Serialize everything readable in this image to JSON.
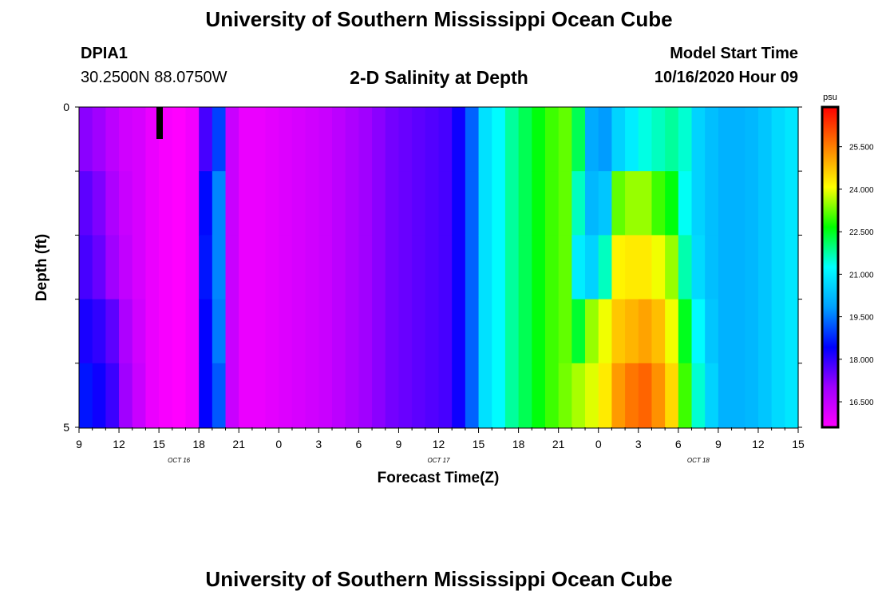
{
  "header": {
    "title": "University of Southern Mississippi Ocean Cube",
    "station_id": "DPIA1",
    "station_coords": "30.2500N 88.0750W",
    "plot_title": "2-D Salinity at Depth",
    "model_label": "Model Start Time",
    "model_time": "10/16/2020 Hour 09"
  },
  "footer": {
    "title": "University of Southern Mississippi Ocean Cube"
  },
  "chart_data": {
    "type": "heatmap",
    "title": "2-D Salinity at Depth",
    "xlabel": "Forecast Time(Z)",
    "ylabel": "Depth (ft)",
    "units": "psu",
    "x_range": [
      0,
      54
    ],
    "y_range": [
      0,
      5
    ],
    "x_ticks": [
      {
        "pos": 0,
        "label": "9"
      },
      {
        "pos": 3,
        "label": "12"
      },
      {
        "pos": 6,
        "label": "15"
      },
      {
        "pos": 9,
        "label": "18"
      },
      {
        "pos": 12,
        "label": "21"
      },
      {
        "pos": 15,
        "label": "0"
      },
      {
        "pos": 18,
        "label": "3"
      },
      {
        "pos": 21,
        "label": "6"
      },
      {
        "pos": 24,
        "label": "9"
      },
      {
        "pos": 27,
        "label": "12"
      },
      {
        "pos": 30,
        "label": "15"
      },
      {
        "pos": 33,
        "label": "18"
      },
      {
        "pos": 36,
        "label": "21"
      },
      {
        "pos": 39,
        "label": "0"
      },
      {
        "pos": 42,
        "label": "3"
      },
      {
        "pos": 45,
        "label": "6"
      },
      {
        "pos": 48,
        "label": "9"
      },
      {
        "pos": 51,
        "label": "12"
      },
      {
        "pos": 54,
        "label": "15"
      }
    ],
    "date_labels": [
      {
        "pos": 7.5,
        "label": "OCT 16"
      },
      {
        "pos": 27,
        "label": "OCT 17"
      },
      {
        "pos": 46.5,
        "label": "OCT 18"
      }
    ],
    "y_ticks": [
      {
        "pos": 0,
        "label": "0"
      },
      {
        "pos": 5,
        "label": "5"
      }
    ],
    "colorbar": {
      "unit_label": "psu",
      "range": [
        15.6,
        26.9
      ],
      "ticks": [
        16.5,
        18.0,
        19.5,
        21.0,
        22.5,
        24.0,
        25.5
      ],
      "tick_labels": [
        "16.500",
        "18.000",
        "19.500",
        "21.000",
        "22.500",
        "24.000",
        "25.500"
      ],
      "colors": [
        "#ff00ff",
        "#a000ff",
        "#0000ff",
        "#00a0ff",
        "#00ffff",
        "#00ff00",
        "#ffff00",
        "#ff8000",
        "#ff0000"
      ]
    },
    "depth_levels": 5,
    "time_steps": 54,
    "profiles": [
      {
        "t": 0.5,
        "v": [
          17.2,
          17.6,
          17.8,
          18.2,
          18.6
        ]
      },
      {
        "t": 1.5,
        "v": [
          17.0,
          17.3,
          17.5,
          18.0,
          18.3
        ]
      },
      {
        "t": 2.5,
        "v": [
          16.6,
          16.8,
          17.0,
          17.6,
          17.9
        ]
      },
      {
        "t": 3.5,
        "v": [
          16.3,
          16.4,
          16.5,
          16.8,
          17.0
        ]
      },
      {
        "t": 4.5,
        "v": [
          16.2,
          16.2,
          16.2,
          16.3,
          16.4
        ]
      },
      {
        "t": 5.5,
        "v": [
          15.9,
          15.9,
          15.9,
          15.9,
          15.9
        ]
      },
      {
        "t": 6.5,
        "v": [
          15.7,
          15.7,
          15.7,
          15.7,
          15.7
        ]
      },
      {
        "t": 7.5,
        "v": [
          15.6,
          15.6,
          15.6,
          15.6,
          15.6
        ]
      },
      {
        "t": 8.5,
        "v": [
          15.8,
          15.8,
          15.8,
          15.8,
          15.8
        ]
      },
      {
        "t": 9.5,
        "v": [
          17.8,
          18.5,
          18.6,
          18.4,
          18.4
        ]
      },
      {
        "t": 10.5,
        "v": [
          19.0,
          19.6,
          19.6,
          19.5,
          19.2
        ]
      },
      {
        "t": 11.5,
        "v": [
          16.4,
          16.4,
          16.4,
          16.4,
          16.4
        ]
      },
      {
        "t": 12.5,
        "v": [
          15.9,
          15.9,
          15.9,
          15.9,
          15.9
        ]
      },
      {
        "t": 13.5,
        "v": [
          15.9,
          15.9,
          15.9,
          15.9,
          15.9
        ]
      },
      {
        "t": 14.5,
        "v": [
          16.0,
          16.0,
          16.0,
          16.0,
          16.0
        ]
      },
      {
        "t": 15.5,
        "v": [
          16.1,
          16.1,
          16.1,
          16.1,
          16.1
        ]
      },
      {
        "t": 16.5,
        "v": [
          16.2,
          16.2,
          16.2,
          16.2,
          16.2
        ]
      },
      {
        "t": 17.5,
        "v": [
          16.3,
          16.3,
          16.3,
          16.3,
          16.3
        ]
      },
      {
        "t": 18.5,
        "v": [
          16.4,
          16.4,
          16.4,
          16.4,
          16.4
        ]
      },
      {
        "t": 19.5,
        "v": [
          16.6,
          16.6,
          16.6,
          16.6,
          16.6
        ]
      },
      {
        "t": 20.5,
        "v": [
          16.8,
          16.8,
          16.8,
          16.8,
          16.8
        ]
      },
      {
        "t": 21.5,
        "v": [
          17.0,
          17.0,
          17.0,
          17.0,
          17.0
        ]
      },
      {
        "t": 22.5,
        "v": [
          17.2,
          17.2,
          17.2,
          17.2,
          17.2
        ]
      },
      {
        "t": 23.5,
        "v": [
          17.4,
          17.4,
          17.4,
          17.4,
          17.4
        ]
      },
      {
        "t": 24.5,
        "v": [
          17.5,
          17.5,
          17.5,
          17.5,
          17.5
        ]
      },
      {
        "t": 25.5,
        "v": [
          17.6,
          17.6,
          17.6,
          17.6,
          17.6
        ]
      },
      {
        "t": 26.5,
        "v": [
          17.7,
          17.7,
          17.7,
          17.7,
          17.7
        ]
      },
      {
        "t": 27.5,
        "v": [
          17.8,
          17.8,
          17.8,
          17.8,
          17.8
        ]
      },
      {
        "t": 28.5,
        "v": [
          18.3,
          18.3,
          18.3,
          18.3,
          18.3
        ]
      },
      {
        "t": 29.5,
        "v": [
          19.3,
          19.3,
          19.3,
          19.3,
          19.3
        ]
      },
      {
        "t": 30.5,
        "v": [
          20.8,
          20.8,
          20.8,
          20.8,
          20.8
        ]
      },
      {
        "t": 31.5,
        "v": [
          21.2,
          21.2,
          21.2,
          21.2,
          21.2
        ]
      },
      {
        "t": 32.5,
        "v": [
          21.8,
          21.8,
          21.8,
          21.8,
          21.8
        ]
      },
      {
        "t": 33.5,
        "v": [
          22.2,
          22.2,
          22.2,
          22.2,
          22.2
        ]
      },
      {
        "t": 34.5,
        "v": [
          22.6,
          22.6,
          22.6,
          22.6,
          22.6
        ]
      },
      {
        "t": 35.5,
        "v": [
          23.0,
          23.0,
          23.0,
          23.0,
          23.0
        ]
      },
      {
        "t": 36.5,
        "v": [
          23.2,
          23.2,
          23.2,
          23.2,
          23.3
        ]
      },
      {
        "t": 37.5,
        "v": [
          22.2,
          21.6,
          21.0,
          22.4,
          23.6
        ]
      },
      {
        "t": 38.5,
        "v": [
          20.0,
          20.2,
          20.6,
          23.5,
          23.9
        ]
      },
      {
        "t": 39.5,
        "v": [
          19.8,
          20.4,
          21.6,
          24.0,
          24.3
        ]
      },
      {
        "t": 40.5,
        "v": [
          20.6,
          23.2,
          24.2,
          24.7,
          25.2
        ]
      },
      {
        "t": 41.5,
        "v": [
          21.0,
          23.5,
          24.3,
          24.9,
          25.6
        ]
      },
      {
        "t": 42.5,
        "v": [
          21.4,
          23.5,
          24.3,
          25.1,
          25.8
        ]
      },
      {
        "t": 43.5,
        "v": [
          21.6,
          23.0,
          24.0,
          24.8,
          25.3
        ]
      },
      {
        "t": 44.5,
        "v": [
          21.8,
          22.6,
          23.5,
          24.0,
          24.5
        ]
      },
      {
        "t": 45.5,
        "v": [
          21.5,
          21.3,
          21.7,
          22.5,
          23.0
        ]
      },
      {
        "t": 46.5,
        "v": [
          20.6,
          20.6,
          20.7,
          21.2,
          21.5
        ]
      },
      {
        "t": 47.5,
        "v": [
          20.3,
          20.3,
          20.3,
          20.4,
          20.6
        ]
      },
      {
        "t": 48.5,
        "v": [
          20.1,
          20.1,
          20.1,
          20.1,
          20.1
        ]
      },
      {
        "t": 49.5,
        "v": [
          20.1,
          20.1,
          20.1,
          20.1,
          20.1
        ]
      },
      {
        "t": 50.5,
        "v": [
          20.2,
          20.2,
          20.2,
          20.2,
          20.2
        ]
      },
      {
        "t": 51.5,
        "v": [
          20.4,
          20.4,
          20.4,
          20.4,
          20.4
        ]
      },
      {
        "t": 52.5,
        "v": [
          20.7,
          20.7,
          20.7,
          20.7,
          20.7
        ]
      },
      {
        "t": 53.5,
        "v": [
          20.9,
          20.9,
          20.9,
          20.9,
          20.9
        ]
      }
    ]
  }
}
